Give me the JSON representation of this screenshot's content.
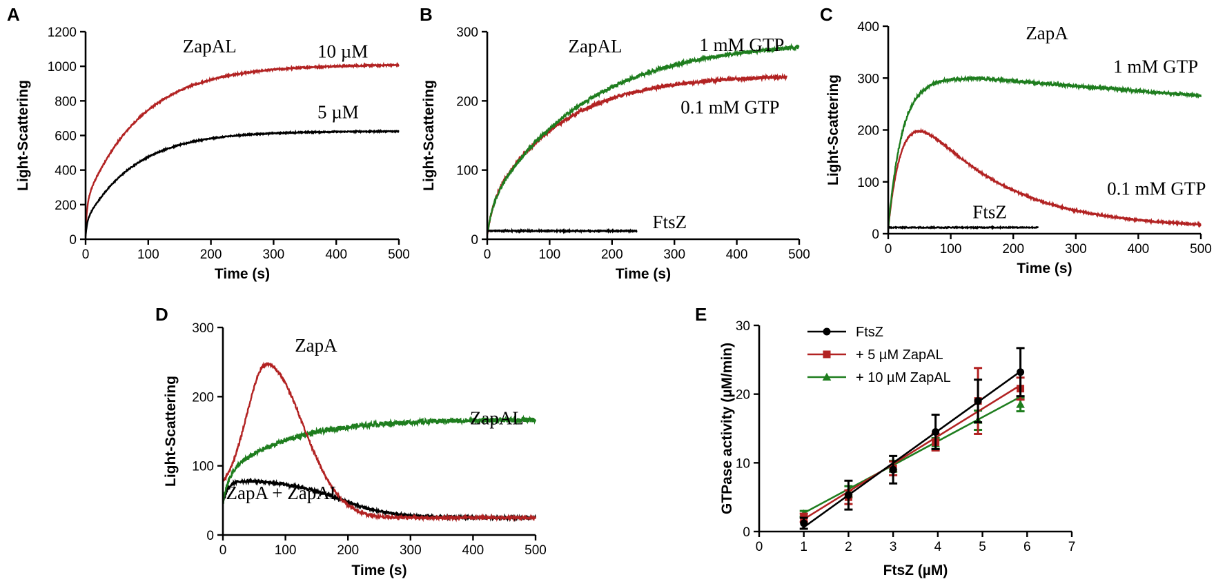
{
  "chart_data": [
    {
      "panel": "A",
      "type": "line",
      "title": "",
      "xlabel": "Time (s)",
      "ylabel": "Light-Scattering",
      "xlim": [
        0,
        500
      ],
      "ylim": [
        0,
        1200
      ],
      "xticks": [
        0,
        100,
        200,
        300,
        400,
        500
      ],
      "yticks": [
        0,
        200,
        400,
        600,
        800,
        1000,
        1200
      ],
      "series": [
        {
          "name": "10 µM",
          "color": "#b22222",
          "model": "exp2",
          "x0": 0,
          "x1": 500,
          "base": 50,
          "a1": 170,
          "k1": 0.35,
          "a2": 790,
          "k2": 0.011,
          "noise": 4
        },
        {
          "name": "5 µM",
          "color": "#000000",
          "model": "exp2",
          "x0": 0,
          "x1": 500,
          "base": 15,
          "a1": 90,
          "k1": 0.4,
          "a2": 520,
          "k2": 0.0125,
          "noise": 3
        }
      ],
      "annotations": [
        {
          "text": "ZapAL",
          "x": 155,
          "y": 1080
        },
        {
          "text": "10 µM",
          "x": 370,
          "y": 1050
        },
        {
          "text": "5 µM",
          "x": 370,
          "y": 700
        }
      ]
    },
    {
      "panel": "B",
      "type": "line",
      "title": "",
      "xlabel": "Time (s)",
      "ylabel": "Light-Scattering",
      "xlim": [
        0,
        500
      ],
      "ylim": [
        0,
        300
      ],
      "xticks": [
        0,
        100,
        200,
        300,
        400,
        500
      ],
      "yticks": [
        0,
        100,
        200,
        300
      ],
      "series": [
        {
          "name": "0.1 mM GTP",
          "color": "#b22222",
          "model": "exp2",
          "x0": 0,
          "x1": 480,
          "base": 8,
          "a1": 40,
          "k1": 0.1,
          "a2": 190,
          "k2": 0.0085,
          "noise": 2.5
        },
        {
          "name": "1 mM GTP",
          "color": "#1e7d1e",
          "model": "exp2",
          "x0": 0,
          "x1": 500,
          "base": 8,
          "a1": 40,
          "k1": 0.1,
          "a2": 240,
          "k2": 0.0063,
          "noise": 2.5
        },
        {
          "name": "FtsZ",
          "color": "#000000",
          "model": "flat",
          "x0": 0,
          "x1": 240,
          "base": 12,
          "noise": 0.8
        }
      ],
      "annotations": [
        {
          "text": "ZapAL",
          "x": 130,
          "y": 270
        },
        {
          "text": "1 mM GTP",
          "x": 340,
          "y": 272
        },
        {
          "text": "0.1 mM GTP",
          "x": 310,
          "y": 182
        },
        {
          "text": "FtsZ",
          "x": 265,
          "y": 16
        }
      ]
    },
    {
      "panel": "C",
      "type": "line",
      "title": "",
      "xlabel": "Time (s)",
      "ylabel": "Light-Scattering",
      "xlim": [
        0,
        500
      ],
      "ylim": [
        0,
        400
      ],
      "xticks": [
        0,
        100,
        200,
        300,
        400,
        500
      ],
      "yticks": [
        0,
        100,
        200,
        300,
        400
      ],
      "series": [
        {
          "name": "0.1 mM GTP",
          "color": "#b22222",
          "model": "peak",
          "x0": 0,
          "x1": 500,
          "base": 10,
          "amp": 330,
          "kr": 0.035,
          "kd": 0.0075,
          "noise": 1.5
        },
        {
          "name": "1 mM GTP",
          "color": "#1e7d1e",
          "model": "peakdrift",
          "x0": 0,
          "x1": 500,
          "base": 10,
          "plateau": 290,
          "kr": 0.045,
          "tp": 140,
          "slope": 0.1,
          "noise": 2.5
        },
        {
          "name": "FtsZ",
          "color": "#000000",
          "model": "flat",
          "x0": 0,
          "x1": 240,
          "base": 12,
          "noise": 0.8
        }
      ],
      "annotations": [
        {
          "text": "ZapA",
          "x": 220,
          "y": 375
        },
        {
          "text": "1 mM GTP",
          "x": 360,
          "y": 310
        },
        {
          "text": "0.1 mM GTP",
          "x": 350,
          "y": 75
        },
        {
          "text": "FtsZ",
          "x": 135,
          "y": 30
        }
      ]
    },
    {
      "panel": "D",
      "type": "line",
      "title": "",
      "xlabel": "Time (s)",
      "ylabel": "Light-Scattering",
      "xlim": [
        0,
        500
      ],
      "ylim": [
        0,
        300
      ],
      "xticks": [
        0,
        100,
        200,
        300,
        400,
        500
      ],
      "yticks": [
        0,
        100,
        200,
        300
      ],
      "series": [
        {
          "name": "ZapA + ZapAL",
          "color": "#000000",
          "model": "sigdecay",
          "x0": 0,
          "x1": 500,
          "base": 45,
          "plateau": 80,
          "final": 25,
          "kr": 0.12,
          "tm": 190,
          "w": 40,
          "noise": 2
        },
        {
          "name": "ZapAL",
          "color": "#1e7d1e",
          "model": "exp2",
          "x0": 0,
          "x1": 500,
          "base": 45,
          "a1": 40,
          "k1": 0.12,
          "a2": 82,
          "k2": 0.01,
          "noise": 3.5
        },
        {
          "name": "ZapA",
          "color": "#b22222",
          "model": "gauss",
          "x0": 0,
          "x1": 500,
          "base": 60,
          "final": 25,
          "peak": 247,
          "tp": 70,
          "s1": 32,
          "s2": 58,
          "noise": 2
        }
      ],
      "annotations": [
        {
          "text": "ZapA",
          "x": 115,
          "y": 265
        },
        {
          "text": "ZapAL",
          "x": 395,
          "y": 160
        },
        {
          "text": "ZapA + ZapAL",
          "x": 5,
          "y": 52
        }
      ]
    },
    {
      "panel": "E",
      "type": "scatter",
      "title": "",
      "xlabel": "FtsZ (µM)",
      "ylabel": "GTPase activity (µM/min)",
      "xlim": [
        0,
        7
      ],
      "ylim": [
        0,
        30
      ],
      "xticks": [
        0,
        1,
        2,
        3,
        4,
        5,
        6,
        7
      ],
      "yticks": [
        0,
        10,
        20,
        30
      ],
      "series": [
        {
          "name": "FtsZ",
          "color": "#000000",
          "marker": "circle",
          "x": [
            1,
            2,
            3,
            3.95,
            4.9,
            5.85
          ],
          "y": [
            1.2,
            5.3,
            9.0,
            14.5,
            19.0,
            23.2
          ],
          "err": [
            0.8,
            2.1,
            2.0,
            2.5,
            3.1,
            3.5
          ],
          "fit": [
            0.95,
            0.4,
            5.85,
            23.3
          ]
        },
        {
          "name": "+ 5 µM ZapAL",
          "color": "#b22222",
          "marker": "square",
          "x": [
            1,
            2,
            3,
            3.95,
            4.9,
            5.85
          ],
          "y": [
            2.0,
            5.0,
            9.2,
            13.0,
            19.0,
            20.8
          ],
          "err": [
            0.6,
            1.0,
            1.0,
            1.2,
            4.8,
            1.6
          ],
          "fit": [
            1.0,
            1.8,
            5.85,
            21.3
          ]
        },
        {
          "name": "+ 10 µM ZapAL",
          "color": "#1e7d1e",
          "marker": "triangle",
          "x": [
            1,
            2,
            3,
            3.95,
            4.9,
            5.85
          ],
          "y": [
            2.6,
            5.8,
            9.5,
            12.8,
            16.2,
            18.5
          ],
          "err": [
            0.4,
            0.8,
            0.8,
            0.8,
            1.4,
            1.0
          ],
          "fit": [
            1.0,
            2.7,
            5.85,
            19.6
          ]
        }
      ],
      "legend_position": "top-left"
    }
  ]
}
